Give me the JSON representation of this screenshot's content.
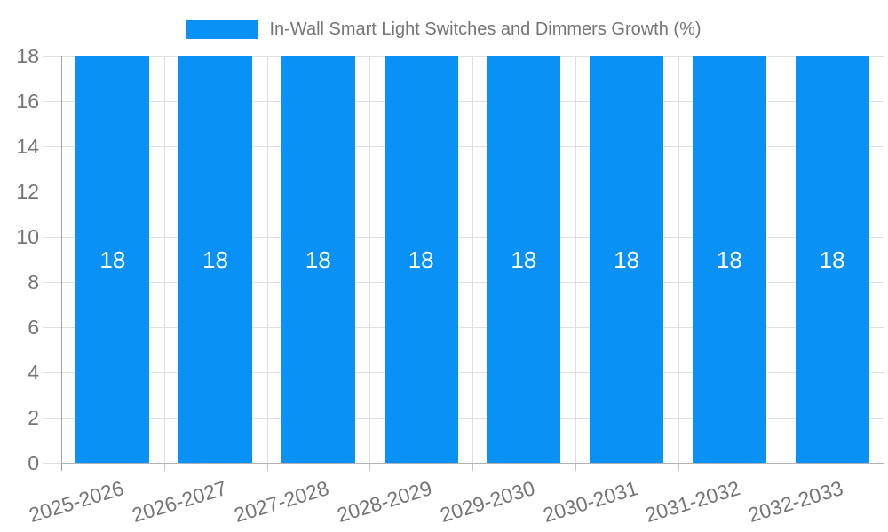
{
  "legend": {
    "label": "In-Wall Smart Light Switches and Dimmers Growth (%)"
  },
  "chart_data": {
    "type": "bar",
    "title": "",
    "categories": [
      "2025-2026",
      "2026-2027",
      "2027-2028",
      "2028-2029",
      "2029-2030",
      "2030-2031",
      "2031-2032",
      "2032-2033"
    ],
    "series": [
      {
        "name": "In-Wall Smart Light Switches and Dimmers Growth (%)",
        "values": [
          18,
          18,
          18,
          18,
          18,
          18,
          18,
          18
        ]
      }
    ],
    "bar_labels": [
      "18",
      "18",
      "18",
      "18",
      "18",
      "18",
      "18",
      "18"
    ],
    "xlabel": "",
    "ylabel": "",
    "ylim": [
      0,
      18
    ],
    "yticks": [
      0,
      2,
      4,
      6,
      8,
      10,
      12,
      14,
      16,
      18
    ],
    "grid": true,
    "legend_position": "top-center",
    "colors": {
      "bar": "#0991f6",
      "bar_label_text": "#ffffff",
      "axis_text": "#757575",
      "gridline": "#e0e0e0",
      "axis_line": "#9e9e9e",
      "baseline": "#b3b3b3",
      "tick_mark": "#c2c2c2"
    }
  }
}
